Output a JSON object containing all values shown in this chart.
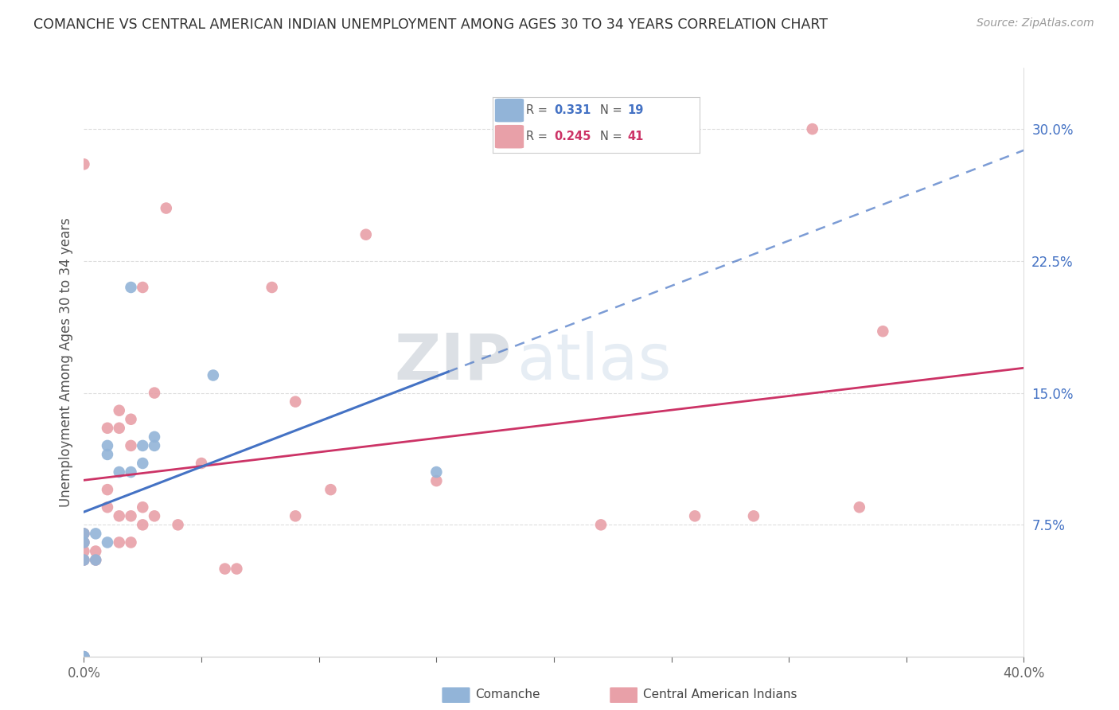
{
  "title": "COMANCHE VS CENTRAL AMERICAN INDIAN UNEMPLOYMENT AMONG AGES 30 TO 34 YEARS CORRELATION CHART",
  "source": "Source: ZipAtlas.com",
  "ylabel": "Unemployment Among Ages 30 to 34 years",
  "xlim": [
    0.0,
    0.4
  ],
  "ylim": [
    0.0,
    0.335
  ],
  "xticks": [
    0.0,
    0.05,
    0.1,
    0.15,
    0.2,
    0.25,
    0.3,
    0.35,
    0.4
  ],
  "ytick_labels_right": [
    "7.5%",
    "15.0%",
    "22.5%",
    "30.0%"
  ],
  "ytick_vals_right": [
    0.075,
    0.15,
    0.225,
    0.3
  ],
  "comanche_R": "0.331",
  "comanche_N": "19",
  "central_R": "0.245",
  "central_N": "41",
  "comanche_color": "#92b4d8",
  "central_color": "#e8a0a8",
  "comanche_line_color": "#4472c4",
  "central_line_color": "#cc3366",
  "background_color": "#ffffff",
  "watermark_zip": "ZIP",
  "watermark_atlas": "atlas",
  "comanche_x": [
    0.0,
    0.0,
    0.0,
    0.0,
    0.0,
    0.005,
    0.005,
    0.01,
    0.01,
    0.01,
    0.015,
    0.02,
    0.02,
    0.025,
    0.025,
    0.03,
    0.03,
    0.055,
    0.15
  ],
  "comanche_y": [
    0.0,
    0.0,
    0.055,
    0.065,
    0.07,
    0.055,
    0.07,
    0.065,
    0.115,
    0.12,
    0.105,
    0.105,
    0.21,
    0.11,
    0.12,
    0.12,
    0.125,
    0.16,
    0.105
  ],
  "central_x": [
    0.0,
    0.0,
    0.0,
    0.0,
    0.0,
    0.0,
    0.005,
    0.005,
    0.01,
    0.01,
    0.01,
    0.015,
    0.015,
    0.015,
    0.015,
    0.02,
    0.02,
    0.02,
    0.02,
    0.025,
    0.025,
    0.025,
    0.03,
    0.03,
    0.035,
    0.04,
    0.05,
    0.06,
    0.065,
    0.08,
    0.09,
    0.09,
    0.105,
    0.12,
    0.15,
    0.22,
    0.26,
    0.285,
    0.31,
    0.33,
    0.34
  ],
  "central_y": [
    0.0,
    0.055,
    0.06,
    0.065,
    0.07,
    0.28,
    0.055,
    0.06,
    0.085,
    0.095,
    0.13,
    0.065,
    0.08,
    0.13,
    0.14,
    0.065,
    0.08,
    0.12,
    0.135,
    0.075,
    0.085,
    0.21,
    0.08,
    0.15,
    0.255,
    0.075,
    0.11,
    0.05,
    0.05,
    0.21,
    0.08,
    0.145,
    0.095,
    0.24,
    0.1,
    0.075,
    0.08,
    0.08,
    0.3,
    0.085,
    0.185
  ],
  "comanche_line_x0": 0.0,
  "comanche_line_x_solid_end": 0.155,
  "comanche_line_x_dash_end": 0.4,
  "central_line_x0": 0.0,
  "central_line_x_end": 0.4
}
